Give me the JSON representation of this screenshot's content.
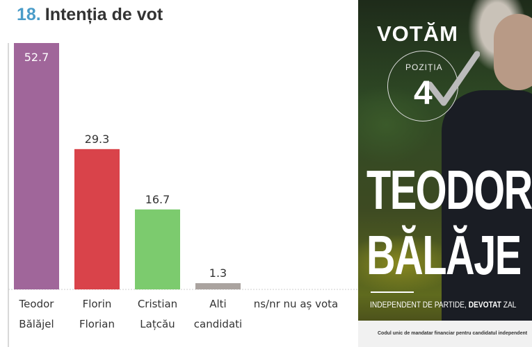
{
  "chart_data": {
    "type": "bar",
    "title_number": "18.",
    "title": "Intenția de vot",
    "categories": [
      [
        "Teodor",
        "Bălăjel"
      ],
      [
        "Florin",
        "Florian"
      ],
      [
        "Cristian",
        "Lațcău"
      ],
      [
        "Alti",
        "candidati"
      ],
      [
        "ns/nr nu aș vota",
        ""
      ]
    ],
    "values": [
      52.7,
      29.3,
      16.7,
      1.3,
      null
    ],
    "value_labels": [
      "52.7",
      "29.3",
      "16.7",
      "1.3",
      ""
    ],
    "colors": [
      "#a0669a",
      "#d9434a",
      "#7ccb6e",
      "#aaa39f",
      "#cccccc"
    ],
    "ylim": [
      0,
      55
    ],
    "grid": false
  },
  "poster": {
    "headline": "VOTĂM",
    "position_label": "POZIȚIA",
    "position_number": "4",
    "first_name": "TEODOR",
    "last_name": "BĂLĂJE",
    "tagline_a": "INDEPENDENT DE PARTIDE, ",
    "tagline_b": "DEVOTAT",
    "tagline_c": " ZAL",
    "footer": "Codul unic de mandatar financiar pentru candidatul independent"
  }
}
